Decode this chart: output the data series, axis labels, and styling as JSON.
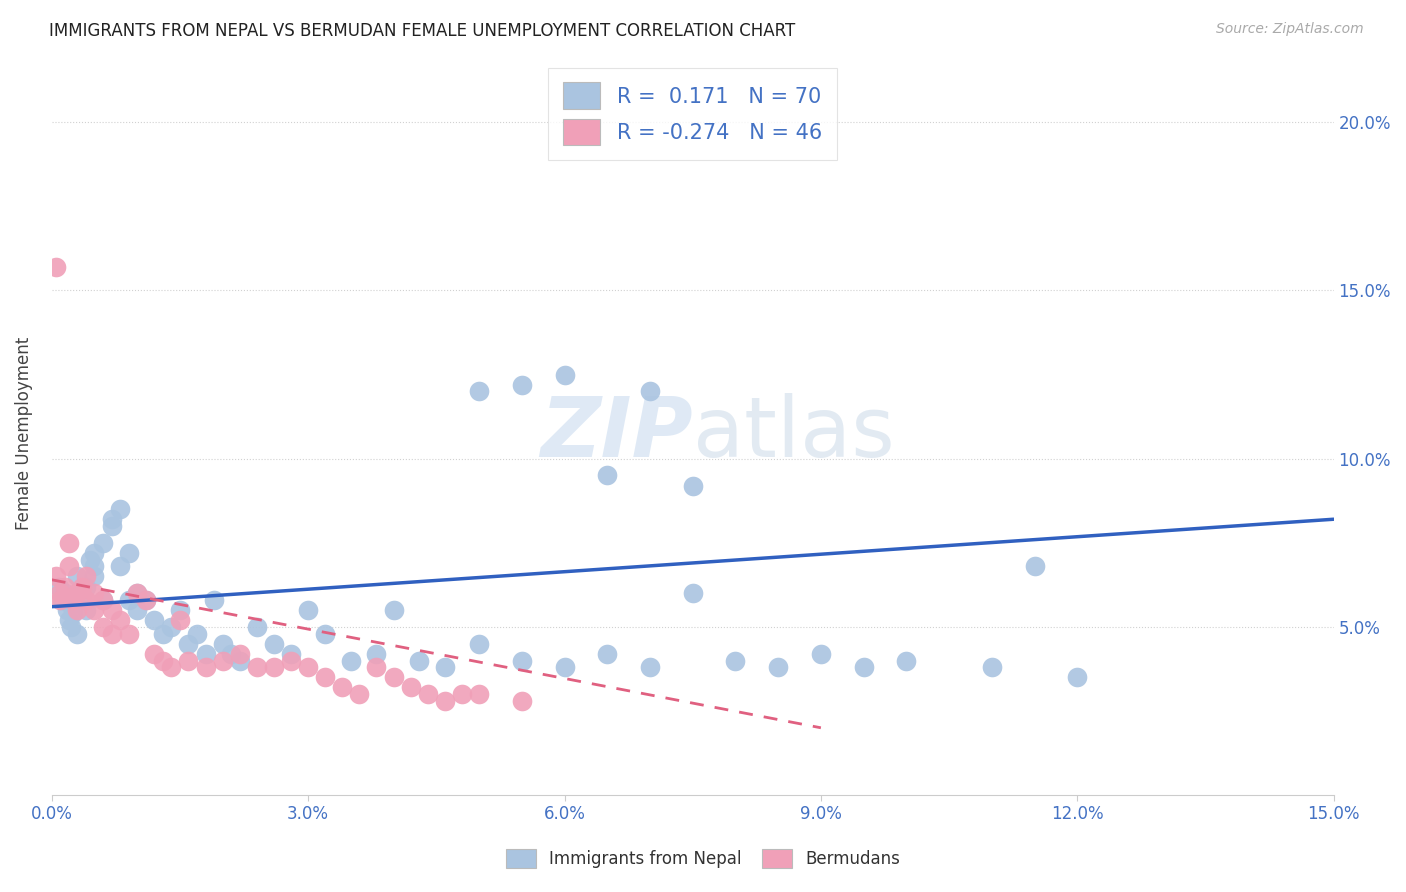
{
  "title": "IMMIGRANTS FROM NEPAL VS BERMUDAN FEMALE UNEMPLOYMENT CORRELATION CHART",
  "source": "Source: ZipAtlas.com",
  "ylabel": "Female Unemployment",
  "y_ticks": [
    0.05,
    0.1,
    0.15,
    0.2
  ],
  "y_tick_labels": [
    "5.0%",
    "10.0%",
    "15.0%",
    "20.0%"
  ],
  "x_ticks": [
    0.0,
    0.03,
    0.06,
    0.09,
    0.12,
    0.15
  ],
  "x_tick_labels": [
    "0.0%",
    "3.0%",
    "6.0%",
    "9.0%",
    "12.0%",
    "15.0%"
  ],
  "xlim": [
    0.0,
    0.15
  ],
  "ylim": [
    0.0,
    0.215
  ],
  "legend1_R": " 0.171",
  "legend1_N": "70",
  "legend2_R": "-0.274",
  "legend2_N": "46",
  "nepal_color": "#aac4e0",
  "bermuda_color": "#f0a0b8",
  "nepal_line_color": "#3060c0",
  "bermuda_line_color": "#e06080",
  "background_color": "#ffffff",
  "grid_color": "#cccccc",
  "watermark_zip": "ZIP",
  "watermark_atlas": "atlas",
  "nepal_x": [
    0.0008,
    0.0012,
    0.0015,
    0.0018,
    0.002,
    0.002,
    0.0022,
    0.0025,
    0.003,
    0.003,
    0.003,
    0.0035,
    0.004,
    0.004,
    0.0045,
    0.005,
    0.005,
    0.005,
    0.006,
    0.006,
    0.007,
    0.007,
    0.008,
    0.008,
    0.009,
    0.009,
    0.01,
    0.01,
    0.011,
    0.012,
    0.013,
    0.014,
    0.015,
    0.016,
    0.017,
    0.018,
    0.019,
    0.02,
    0.021,
    0.022,
    0.024,
    0.026,
    0.028,
    0.03,
    0.032,
    0.035,
    0.038,
    0.04,
    0.043,
    0.046,
    0.05,
    0.055,
    0.06,
    0.065,
    0.07,
    0.075,
    0.08,
    0.085,
    0.09,
    0.095,
    0.1,
    0.11,
    0.12,
    0.05,
    0.06,
    0.07,
    0.055,
    0.065,
    0.075,
    0.115
  ],
  "nepal_y": [
    0.062,
    0.058,
    0.06,
    0.055,
    0.052,
    0.057,
    0.05,
    0.054,
    0.048,
    0.065,
    0.06,
    0.058,
    0.062,
    0.055,
    0.07,
    0.068,
    0.072,
    0.065,
    0.058,
    0.075,
    0.08,
    0.082,
    0.085,
    0.068,
    0.072,
    0.058,
    0.055,
    0.06,
    0.058,
    0.052,
    0.048,
    0.05,
    0.055,
    0.045,
    0.048,
    0.042,
    0.058,
    0.045,
    0.042,
    0.04,
    0.05,
    0.045,
    0.042,
    0.055,
    0.048,
    0.04,
    0.042,
    0.055,
    0.04,
    0.038,
    0.045,
    0.04,
    0.038,
    0.042,
    0.038,
    0.06,
    0.04,
    0.038,
    0.042,
    0.038,
    0.04,
    0.038,
    0.035,
    0.12,
    0.125,
    0.12,
    0.122,
    0.095,
    0.092,
    0.068
  ],
  "bermuda_x": [
    0.0005,
    0.001,
    0.001,
    0.0015,
    0.002,
    0.002,
    0.0025,
    0.003,
    0.003,
    0.0035,
    0.004,
    0.004,
    0.005,
    0.005,
    0.006,
    0.006,
    0.007,
    0.007,
    0.008,
    0.009,
    0.01,
    0.011,
    0.012,
    0.013,
    0.014,
    0.015,
    0.016,
    0.018,
    0.02,
    0.022,
    0.024,
    0.026,
    0.028,
    0.03,
    0.032,
    0.034,
    0.036,
    0.038,
    0.04,
    0.042,
    0.044,
    0.046,
    0.048,
    0.05,
    0.055,
    0.0005
  ],
  "bermuda_y": [
    0.065,
    0.06,
    0.058,
    0.062,
    0.075,
    0.068,
    0.058,
    0.06,
    0.055,
    0.062,
    0.065,
    0.058,
    0.06,
    0.055,
    0.05,
    0.058,
    0.055,
    0.048,
    0.052,
    0.048,
    0.06,
    0.058,
    0.042,
    0.04,
    0.038,
    0.052,
    0.04,
    0.038,
    0.04,
    0.042,
    0.038,
    0.038,
    0.04,
    0.038,
    0.035,
    0.032,
    0.03,
    0.038,
    0.035,
    0.032,
    0.03,
    0.028,
    0.03,
    0.03,
    0.028,
    0.157
  ],
  "nepal_line_x": [
    0.0,
    0.15
  ],
  "nepal_line_y": [
    0.056,
    0.082
  ],
  "bermuda_line_x": [
    0.0,
    0.09
  ],
  "bermuda_line_y": [
    0.064,
    0.02
  ]
}
